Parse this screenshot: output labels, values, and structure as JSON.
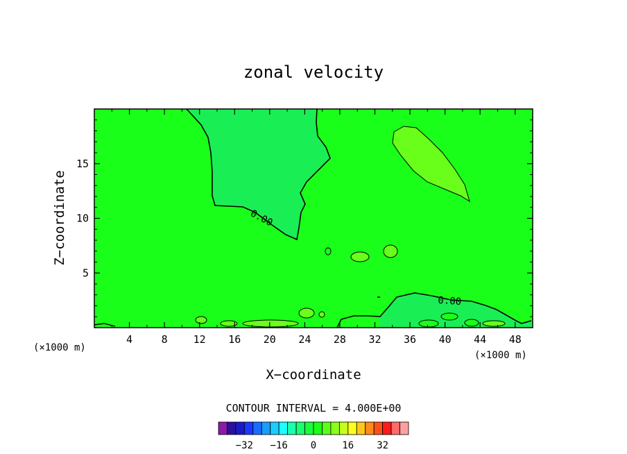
{
  "chart_data": {
    "type": "contour",
    "title": "zonal velocity",
    "xlabel": "X−coordinate",
    "ylabel": "Z−coordinate",
    "x_unit": "(×1000 m)",
    "x_unit_right": "(×1000 m)",
    "xlim": [
      0,
      50
    ],
    "ylim": [
      0,
      20
    ],
    "x_ticks": [
      4,
      8,
      12,
      16,
      20,
      24,
      28,
      32,
      36,
      40,
      44,
      48
    ],
    "y_ticks": [
      5,
      10,
      15
    ],
    "contour_interval_text": "CONTOUR INTERVAL = 4.000E+00",
    "contour_label": "0.00",
    "colorbar": {
      "levels": [
        -40,
        -36,
        -32,
        -28,
        -24,
        -20,
        -16,
        -12,
        -8,
        -4,
        0,
        4,
        8,
        12,
        16,
        20,
        24,
        28,
        32,
        36,
        40
      ],
      "colors": [
        "#8c1aa8",
        "#2b0f9e",
        "#1a1ac8",
        "#1a3aff",
        "#1a6eff",
        "#1a9eff",
        "#1accff",
        "#1affff",
        "#1affb0",
        "#1aff70",
        "#1aff3a",
        "#1aff1a",
        "#5aff1a",
        "#8cff1a",
        "#c8ff1a",
        "#ffff1a",
        "#ffc81a",
        "#ff8c1a",
        "#ff501a",
        "#ff1a1a",
        "#ff6a6a",
        "#ffa0a0"
      ],
      "tick_values": [
        -32,
        -16,
        0,
        16,
        32
      ],
      "tick_labels": [
        "−32",
        "−16",
        "0",
        "16",
        "32"
      ]
    },
    "regions": [
      {
        "name": "negative-region-upper",
        "level": -4
      },
      {
        "name": "negative-region-lower-right",
        "level": -4
      },
      {
        "name": "positive-region-upper-right",
        "level": 4
      },
      {
        "name": "positive-small-cells",
        "level": 4
      }
    ]
  },
  "colors": {
    "background": "#1aff1a",
    "negative_fill": "#1aee55",
    "positive_fill": "#6aff1a",
    "contour_line": "#000000"
  }
}
